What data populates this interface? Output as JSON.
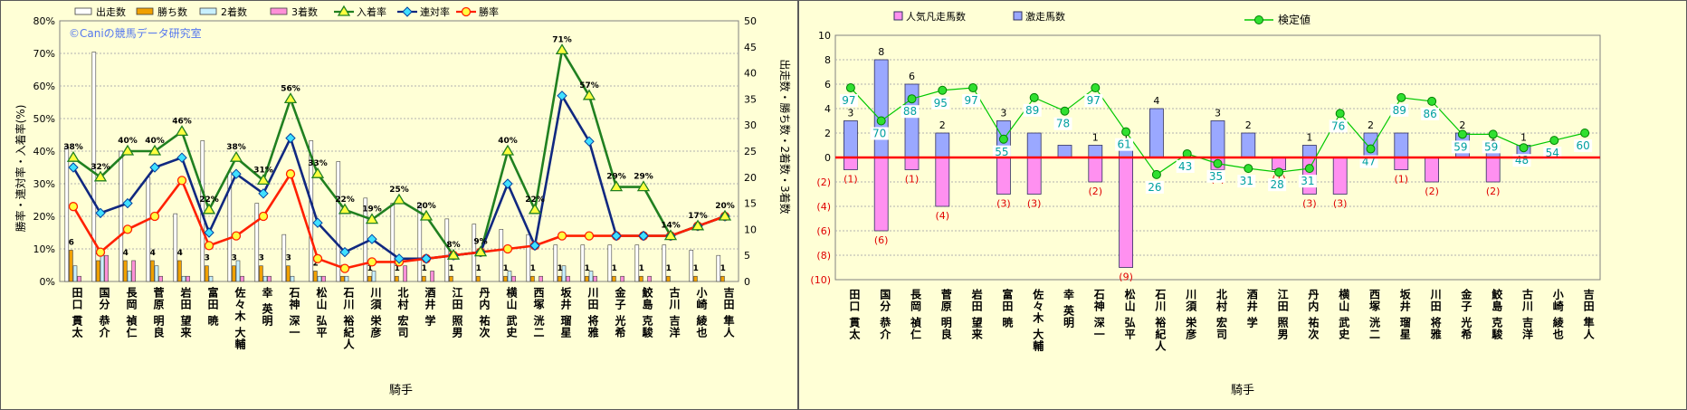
{
  "chart_data": [
    {
      "type": "bar",
      "categories": [
        "田口 貫太",
        "国分 恭介",
        "長岡 禎仁",
        "菅原 明良",
        "岩田 望来",
        "富田 暁",
        "佐々木 大輔",
        "幸 英明",
        "石神 深一",
        "松山 弘平",
        "石川 裕紀人",
        "川須 栄彦",
        "北村 宏司",
        "酒井 学",
        "江田 照男",
        "丹内 祐次",
        "横山 武史",
        "西塚 洸二",
        "坂井 瑠星",
        "川田 将雅",
        "金子 光希",
        "鮫島 克駿",
        "古川 吉洋",
        "小崎 綾也",
        "吉田 隼人"
      ],
      "xlabel": "騎手",
      "ylabel_left": "勝率・連対率・入着率(%)",
      "ylabel_right": "出走数・勝ち数・2着数・3着数",
      "y_left_ticks": [
        "0%",
        "10%",
        "20%",
        "30%",
        "40%",
        "50%",
        "60%",
        "70%",
        "80%"
      ],
      "y_right_ticks": [
        "0",
        "5",
        "10",
        "15",
        "20",
        "25",
        "30",
        "35",
        "40",
        "45",
        "50"
      ],
      "ylim_left": [
        0,
        80
      ],
      "ylim_right": [
        0,
        50
      ],
      "watermark": "©Caniの競馬データ研究室",
      "legend": [
        "出走数",
        "勝ち数",
        "2着数",
        "3着数",
        "入着率",
        "連対率",
        "勝率"
      ],
      "bar_series": [
        {
          "name": "出走数",
          "color": "#ffffff",
          "values": [
            26,
            44,
            25,
            20,
            13,
            27,
            21,
            15,
            9,
            27,
            23,
            16,
            15,
            15,
            12,
            11,
            10,
            9,
            7,
            7,
            7,
            7,
            7,
            6,
            5
          ]
        },
        {
          "name": "勝ち数",
          "color": "#f0a000",
          "values": [
            6,
            4,
            4,
            4,
            4,
            3,
            3,
            3,
            3,
            2,
            1,
            1,
            1,
            1,
            1,
            1,
            1,
            1,
            1,
            1,
            1,
            1,
            1,
            1,
            1
          ]
        },
        {
          "name": "2着数",
          "color": "#c8f0ff",
          "values": [
            3,
            5,
            2,
            3,
            1,
            1,
            4,
            1,
            1,
            1,
            1,
            2,
            0,
            0,
            0,
            0,
            2,
            0,
            3,
            2,
            0,
            0,
            0,
            0,
            0
          ]
        },
        {
          "name": "3着数",
          "color": "#ff90d8",
          "values": [
            1,
            5,
            4,
            1,
            1,
            0,
            1,
            1,
            0,
            1,
            0,
            0,
            3,
            2,
            0,
            0,
            1,
            1,
            1,
            1,
            1,
            1,
            0,
            0,
            0
          ]
        }
      ],
      "line_series": [
        {
          "name": "入着率",
          "color": "#208020",
          "marker": "triangle",
          "values": [
            38,
            32,
            40,
            40,
            46,
            22,
            38,
            31,
            56,
            33,
            22,
            19,
            25,
            20,
            8,
            9,
            40,
            22,
            71,
            57,
            29,
            29,
            14,
            17,
            20
          ]
        },
        {
          "name": "連対率",
          "color": "#102880",
          "marker": "diamond",
          "values": [
            35,
            21,
            24,
            35,
            38,
            15,
            33,
            27,
            44,
            18,
            9,
            13,
            7,
            7,
            8,
            9,
            30,
            11,
            57,
            43,
            14,
            14,
            14,
            17,
            20
          ]
        },
        {
          "name": "勝率",
          "color": "#ff2000",
          "marker": "circle",
          "values": [
            23,
            9,
            16,
            20,
            31,
            11,
            14,
            20,
            33,
            7,
            4,
            6,
            6,
            7,
            8,
            9,
            10,
            11,
            14,
            14,
            14,
            14,
            14,
            17,
            20
          ]
        }
      ],
      "pct_labels": [
        "38%",
        "32%",
        "40%",
        "40%",
        "46%",
        "22%",
        "38%",
        "31%",
        "56%",
        "33%",
        "22%",
        "19%",
        "25%",
        "20%",
        "8%",
        "9%",
        "40%",
        "22%",
        "71%",
        "57%",
        "29%",
        "29%",
        "14%",
        "17%",
        "20%"
      ],
      "count_labels": [
        "6",
        "4",
        "4",
        "4",
        "4",
        "3",
        "3",
        "3",
        "3",
        "2",
        "1",
        "1",
        "1",
        "1",
        "1",
        "1",
        "1",
        "1",
        "1",
        "1",
        "1",
        "1",
        "1",
        "1",
        "1"
      ]
    },
    {
      "type": "bar",
      "categories": [
        "田口 貫太",
        "国分 恭介",
        "長岡 禎仁",
        "菅原 明良",
        "岩田 望来",
        "富田 暁",
        "佐々木 大輔",
        "幸 英明",
        "石神 深一",
        "松山 弘平",
        "石川 裕紀人",
        "川須 栄彦",
        "北村 宏司",
        "酒井 学",
        "江田 照男",
        "丹内 祐次",
        "横山 武史",
        "西塚 洸二",
        "坂井 瑠星",
        "川田 将雅",
        "金子 光希",
        "鮫島 克駿",
        "古川 吉洋",
        "小崎 綾也",
        "吉田 隼人"
      ],
      "xlabel": "騎手",
      "y_ticks": [
        "10",
        "8",
        "6",
        "4",
        "2",
        "0",
        "(2)",
        "(4)",
        "(6)",
        "(8)",
        "(10)"
      ],
      "ylim": [
        -10,
        10
      ],
      "legend": [
        "人気凡走馬数",
        "激走馬数",
        "検定値"
      ],
      "series": [
        {
          "name": "激走馬数",
          "color": "#9aa8ff",
          "values": [
            3,
            8,
            6,
            2,
            0,
            3,
            2,
            1,
            1,
            1,
            4,
            0,
            3,
            2,
            0,
            1,
            0,
            2,
            2,
            0,
            2,
            1,
            1,
            0,
            0
          ],
          "labels": [
            "3",
            "8",
            "6",
            "2",
            "",
            "3",
            "",
            "",
            "1",
            "1",
            "4",
            "",
            "3",
            "2",
            "",
            "1",
            "",
            "2",
            "",
            "",
            "2",
            "1",
            "1",
            "",
            ""
          ]
        },
        {
          "name": "人気凡走馬数",
          "color": "#ff90f0",
          "values": [
            -1,
            -6,
            -1,
            -4,
            0,
            -3,
            -3,
            0,
            -2,
            -9,
            0,
            0,
            -1,
            0,
            -1,
            -3,
            -3,
            0,
            -1,
            -2,
            0,
            -2,
            0,
            0,
            0
          ],
          "labels": [
            "(1)",
            "(6)",
            "(1)",
            "(4)",
            "",
            "(3)",
            "(3)",
            "",
            "(2)",
            "(9)",
            "",
            "",
            "(1)",
            "",
            "(1)",
            "(3)",
            "(3)",
            "",
            "(1)",
            "(2)",
            "",
            "(2)",
            "",
            "",
            ""
          ]
        },
        {
          "name": "検定値",
          "color": "#00c800",
          "marker": "circle",
          "values": [
            97,
            70,
            88,
            95,
            97,
            55,
            89,
            78,
            97,
            61,
            26,
            43,
            35,
            31,
            28,
            31,
            76,
            47,
            89,
            86,
            59,
            59,
            48,
            54,
            60
          ]
        }
      ]
    }
  ]
}
